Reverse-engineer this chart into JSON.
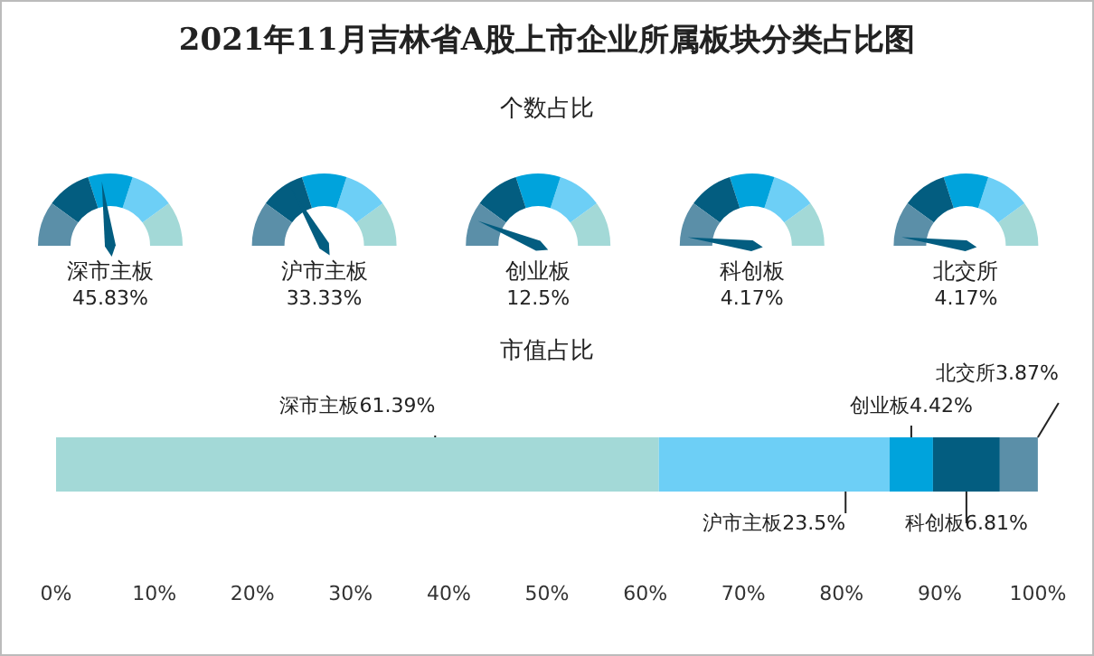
{
  "chart_data": [
    {
      "type": "other",
      "title": "2021年11月吉林省A股上市企业所属板块分类占比图",
      "subtitle": "个数占比",
      "categories": [
        "深市主板",
        "沪市主板",
        "创业板",
        "科创板",
        "北交所"
      ],
      "values": [
        45.83,
        33.33,
        12.5,
        4.17,
        4.17
      ],
      "value_labels": [
        "45.83%",
        "33.33%",
        "12.5%",
        "4.17%",
        "4.17%"
      ],
      "colors": [
        "#5b8fa8",
        "#035d80",
        "#00a3dc",
        "#6dcff6",
        "#a3d9d7"
      ]
    },
    {
      "type": "bar",
      "title": "市值占比",
      "orientation": "horizontal",
      "stacked": true,
      "categories": [
        null
      ],
      "series": [
        {
          "name": "深市主板",
          "color": "#a3d9d7",
          "values": [
            61.39
          ],
          "value_labels": [
            "61.39%"
          ]
        },
        {
          "name": "沪市主板",
          "color": "#6dcff6",
          "values": [
            23.5
          ],
          "value_labels": [
            "23.5%"
          ]
        },
        {
          "name": "创业板",
          "color": "#00a3dc",
          "values": [
            4.42
          ],
          "value_labels": [
            "4.42%"
          ]
        },
        {
          "name": "科创板",
          "color": "#035d80",
          "values": [
            6.81
          ],
          "value_labels": [
            "6.81%"
          ]
        },
        {
          "name": "北交所",
          "color": "#5b8fa8",
          "values": [
            3.87
          ],
          "value_labels": [
            "3.87%"
          ]
        }
      ],
      "xlim": [
        0,
        100
      ],
      "xticks": [
        {
          "value": 0,
          "label": "0%"
        },
        {
          "value": 10,
          "label": "10%"
        },
        {
          "value": 20,
          "label": "20%"
        },
        {
          "value": 30,
          "label": "30%"
        },
        {
          "value": 40,
          "label": "40%"
        },
        {
          "value": 50,
          "label": "50%"
        },
        {
          "value": 60,
          "label": "60%"
        },
        {
          "value": 70,
          "label": "70%"
        },
        {
          "value": 80,
          "label": "80%"
        },
        {
          "value": 90,
          "label": "90%"
        },
        {
          "value": 100,
          "label": "100%"
        }
      ],
      "grid": false,
      "legend": false
    }
  ]
}
